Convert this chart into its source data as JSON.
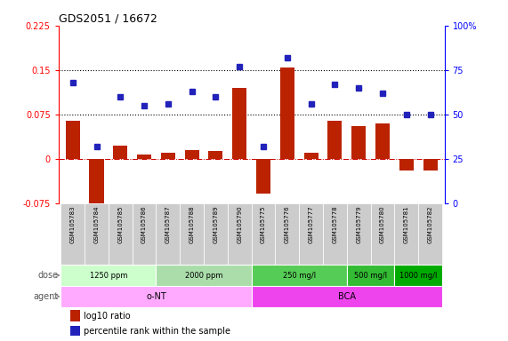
{
  "title": "GDS2051 / 16672",
  "samples": [
    "GSM105783",
    "GSM105784",
    "GSM105785",
    "GSM105786",
    "GSM105787",
    "GSM105788",
    "GSM105789",
    "GSM105790",
    "GSM105775",
    "GSM105776",
    "GSM105777",
    "GSM105778",
    "GSM105779",
    "GSM105780",
    "GSM105781",
    "GSM105782"
  ],
  "log10_ratio": [
    0.065,
    -0.085,
    0.022,
    0.007,
    0.01,
    0.015,
    0.014,
    0.12,
    -0.058,
    0.155,
    0.01,
    0.065,
    0.055,
    0.06,
    -0.02,
    -0.02
  ],
  "percentile_rank": [
    68,
    32,
    60,
    55,
    56,
    63,
    60,
    77,
    32,
    82,
    56,
    67,
    65,
    62,
    50,
    50
  ],
  "ylim_left": [
    -0.075,
    0.225
  ],
  "ylim_right": [
    0,
    100
  ],
  "yticks_left": [
    -0.075,
    0,
    0.075,
    0.15,
    0.225
  ],
  "yticks_right": [
    0,
    25,
    50,
    75,
    100
  ],
  "hlines": [
    0.075,
    0.15
  ],
  "bar_color": "#bb2200",
  "dot_color": "#2222bb",
  "zero_line_color": "#cc0000",
  "background_color": "#ffffff",
  "plot_bg_color": "#ffffff",
  "dose_colors": [
    "#ccffcc",
    "#aaddaa",
    "#55cc55",
    "#33bb33",
    "#00aa00"
  ],
  "agent_colors": [
    "#ffaaff",
    "#ee44ee"
  ],
  "dose_labels": [
    {
      "label": "1250 ppm",
      "start": 0,
      "end": 4
    },
    {
      "label": "2000 ppm",
      "start": 4,
      "end": 8
    },
    {
      "label": "250 mg/l",
      "start": 8,
      "end": 12
    },
    {
      "label": "500 mg/l",
      "start": 12,
      "end": 14
    },
    {
      "label": "1000 mg/l",
      "start": 14,
      "end": 16
    }
  ],
  "agent_labels": [
    {
      "label": "o-NT",
      "start": 0,
      "end": 8
    },
    {
      "label": "BCA",
      "start": 8,
      "end": 16
    }
  ],
  "dose_row_label": "dose",
  "agent_row_label": "agent"
}
